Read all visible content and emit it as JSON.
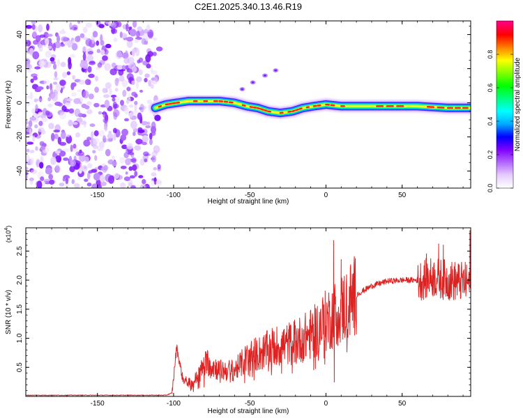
{
  "title": "C2E1.2025.340.13.46.R19",
  "chart_data": [
    {
      "type": "heatmap",
      "title": "C2E1.2025.340.13.46.R19",
      "xlabel": "Height of straight line (km)",
      "ylabel": "Frequency (Hz)",
      "xlim": [
        -197,
        95
      ],
      "ylim": [
        -50,
        48
      ],
      "xticks": [
        -150,
        -100,
        -50,
        0,
        50
      ],
      "yticks": [
        40,
        20,
        0,
        -20,
        -40
      ],
      "noise_region_x": [
        -197,
        -112
      ],
      "ridge": [
        {
          "x": -112,
          "y": -3
        },
        {
          "x": -105,
          "y": -1
        },
        {
          "x": -98,
          "y": 0
        },
        {
          "x": -90,
          "y": 1
        },
        {
          "x": -80,
          "y": 1
        },
        {
          "x": -70,
          "y": 1
        },
        {
          "x": -60,
          "y": 0
        },
        {
          "x": -52,
          "y": -2
        },
        {
          "x": -45,
          "y": -3
        },
        {
          "x": -38,
          "y": -5
        },
        {
          "x": -30,
          "y": -6
        },
        {
          "x": -22,
          "y": -5
        },
        {
          "x": -15,
          "y": -3
        },
        {
          "x": -8,
          "y": -2
        },
        {
          "x": 0,
          "y": -1
        },
        {
          "x": 10,
          "y": -2
        },
        {
          "x": 20,
          "y": -2
        },
        {
          "x": 40,
          "y": -2
        },
        {
          "x": 60,
          "y": -2
        },
        {
          "x": 80,
          "y": -3
        },
        {
          "x": 95,
          "y": -3
        }
      ],
      "side_branch": [
        {
          "x": -55,
          "y": 8
        },
        {
          "x": -48,
          "y": 12
        },
        {
          "x": -40,
          "y": 16
        },
        {
          "x": -33,
          "y": 19
        }
      ],
      "colorbar": {
        "label": "Normalized spectral amplitude",
        "range": [
          0,
          1
        ],
        "ticks": [
          "0.0",
          "0.2",
          "0.4",
          "0.6",
          "0.8"
        ],
        "tick_values": [
          0,
          0.2,
          0.4,
          0.6,
          0.8
        ],
        "colors": [
          "#ffffff",
          "#e6ccff",
          "#b266ff",
          "#8000ff",
          "#0000ff",
          "#00aaff",
          "#00ffff",
          "#00ff80",
          "#00ff00",
          "#80ff00",
          "#ffff00",
          "#ff8000",
          "#ff0000",
          "#ff0080"
        ]
      }
    },
    {
      "type": "line",
      "xlabel": "Height of straight line (km)",
      "ylabel": "SNR (10 * v/v)",
      "y_multiplier": "(x10",
      "y_multiplier_exp": "4",
      "y_multiplier_close": ")",
      "xlim": [
        -197,
        95
      ],
      "ylim": [
        0,
        2.9
      ],
      "xticks": [
        -150,
        -100,
        -50,
        0,
        50
      ],
      "yticks": [
        0.5,
        1.0,
        1.5,
        2.0,
        2.5
      ],
      "series": [
        {
          "name": "SNR",
          "color": "#dd2222",
          "envelope": [
            {
              "x": -197,
              "y": 0.02
            },
            {
              "x": -105,
              "y": 0.02
            },
            {
              "x": -101,
              "y": 0.06
            },
            {
              "x": -98,
              "y": 0.85
            },
            {
              "x": -94,
              "y": 0.3
            },
            {
              "x": -88,
              "y": 0.2
            },
            {
              "x": -78,
              "y": 0.6
            },
            {
              "x": -70,
              "y": 0.45
            },
            {
              "x": -60,
              "y": 0.45
            },
            {
              "x": -50,
              "y": 0.7
            },
            {
              "x": -42,
              "y": 0.75
            },
            {
              "x": -35,
              "y": 0.85
            },
            {
              "x": -25,
              "y": 0.9
            },
            {
              "x": -15,
              "y": 1.0
            },
            {
              "x": -8,
              "y": 1.1
            },
            {
              "x": 0,
              "y": 1.3
            },
            {
              "x": 10,
              "y": 1.5
            },
            {
              "x": 20,
              "y": 1.75
            },
            {
              "x": 30,
              "y": 1.9
            },
            {
              "x": 40,
              "y": 1.98
            },
            {
              "x": 50,
              "y": 2.0
            },
            {
              "x": 62,
              "y": 2.0
            },
            {
              "x": 70,
              "y": 2.05
            },
            {
              "x": 80,
              "y": 2.0
            },
            {
              "x": 95,
              "y": 1.95
            }
          ],
          "spikes": [
            {
              "x": 5,
              "y": 2.68
            },
            {
              "x": 5.5,
              "y": 0.25
            },
            {
              "x": 10,
              "y": 2.35
            },
            {
              "x": 66,
              "y": 2.45
            },
            {
              "x": 74,
              "y": 2.62
            },
            {
              "x": 77,
              "y": 2.6
            },
            {
              "x": 94.5,
              "y": 2.85
            }
          ]
        }
      ]
    }
  ]
}
